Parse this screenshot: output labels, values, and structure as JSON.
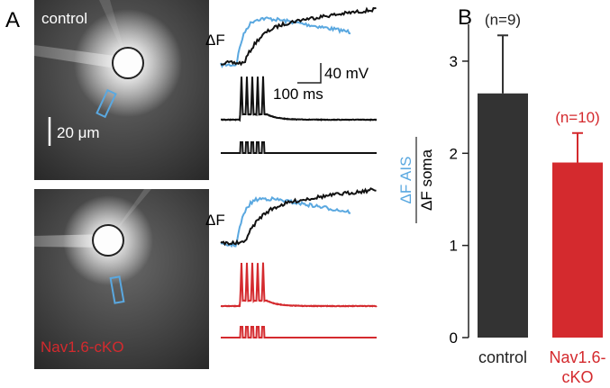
{
  "panels": {
    "a": "A",
    "b": "B"
  },
  "panel_a": {
    "control_label": "control",
    "cko_label": "Nav1.6-cKO",
    "scale_image": "20 μm",
    "delta_f_top": "ΔF",
    "delta_f_bottom": "ΔF",
    "scale_voltage": "40 mV",
    "scale_time": "100 ms"
  },
  "chart_data": {
    "type": "bar",
    "categories": [
      "control",
      "Nav1.6-cKO"
    ],
    "values": [
      2.65,
      1.9
    ],
    "errors": [
      0.63,
      0.32
    ],
    "colors": [
      "#333333",
      "#d42a2e"
    ],
    "label_colors": [
      "#222222",
      "#d42a2e"
    ],
    "annotations": [
      "(n=9)",
      "(n=10)"
    ],
    "ylabel_numerator": "ΔF AIS",
    "ylabel_denominator": "ΔF soma",
    "ylim": [
      0,
      3.4
    ],
    "yticks": [
      0,
      1,
      2,
      3
    ]
  }
}
